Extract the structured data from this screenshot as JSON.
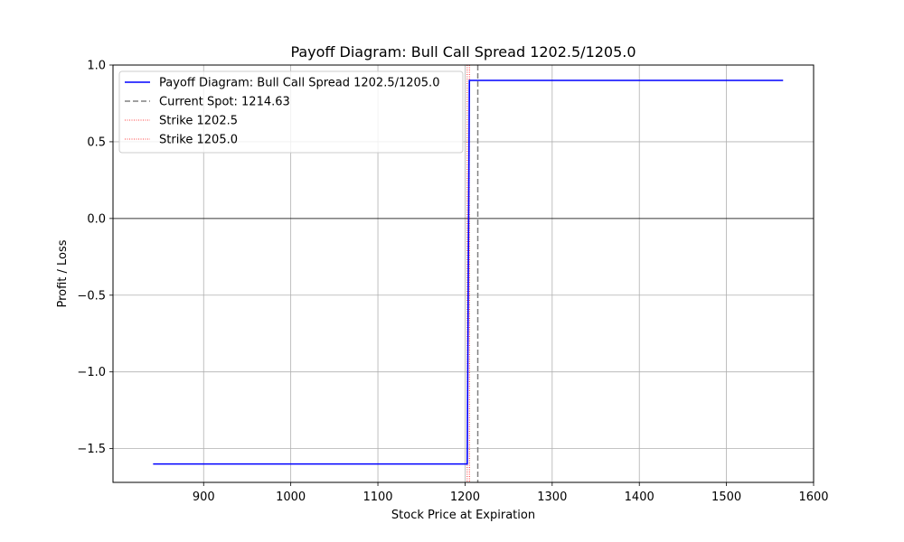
{
  "chart_data": {
    "type": "line",
    "title": "Payoff Diagram: Bull Call Spread 1202.5/1205.0",
    "xlabel": "Stock Price at Expiration",
    "ylabel": "Profit / Loss",
    "xlim": [
      796,
      1600
    ],
    "ylim": [
      -1.72,
      1.0
    ],
    "xticks": [
      900,
      1000,
      1100,
      1200,
      1300,
      1400,
      1500,
      1600
    ],
    "yticks": [
      -1.5,
      -1.0,
      -0.5,
      0.0,
      0.5,
      1.0
    ],
    "xtick_labels": [
      "900",
      "1000",
      "1100",
      "1200",
      "1300",
      "1400",
      "1500",
      "1600"
    ],
    "ytick_labels": [
      "−1.5",
      "−1.0",
      "−0.5",
      "0.0",
      "0.5",
      "1.0"
    ],
    "grid": true,
    "legend_position": "top-left",
    "series": [
      {
        "name": "Payoff Diagram: Bull Call Spread 1202.5/1205.0",
        "color": "#0000ff",
        "style": "solid",
        "x": [
          842,
          1202.5,
          1205.0,
          1565
        ],
        "y": [
          -1.6,
          -1.6,
          0.9,
          0.9
        ]
      }
    ],
    "vlines": [
      {
        "name": "Current Spot: 1214.63",
        "x": 1214.63,
        "color": "#808080",
        "style": "dashed"
      },
      {
        "name": "Strike 1202.5",
        "x": 1202.5,
        "color": "#ff0000",
        "style": "dotted"
      },
      {
        "name": "Strike 1205.0",
        "x": 1205.0,
        "color": "#ff0000",
        "style": "dotted"
      }
    ],
    "hlines": [
      {
        "y": 0.0,
        "color": "#000000",
        "style": "solid"
      }
    ]
  }
}
